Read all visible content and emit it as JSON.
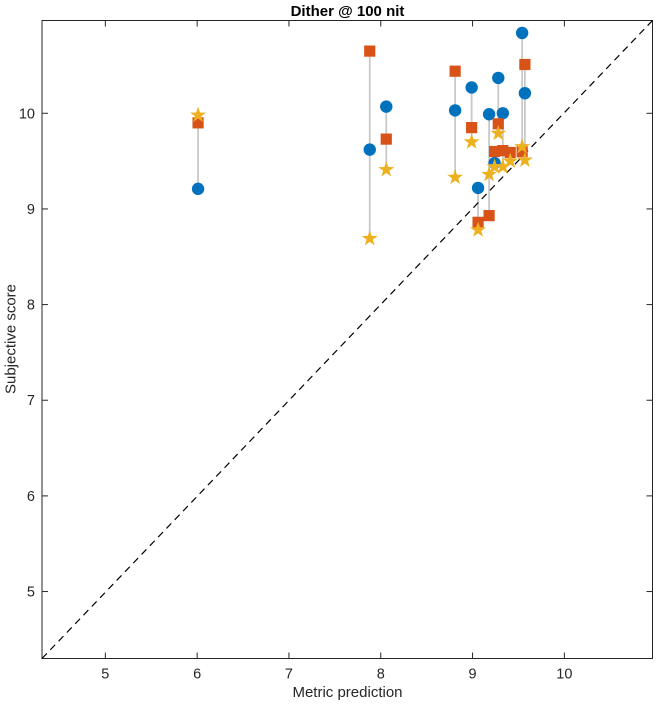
{
  "chart_data": {
    "type": "scatter",
    "title": "Dither @ 100 nit",
    "xlabel": "Metric prediction",
    "ylabel": "Subjective score",
    "xlim": [
      4.31,
      10.96
    ],
    "ylim": [
      4.3,
      10.97
    ],
    "xticks": [
      5,
      6,
      7,
      8,
      9,
      10
    ],
    "yticks": [
      5,
      6,
      7,
      8,
      9,
      10
    ],
    "grid": false,
    "legend": "none",
    "axis_color": "#262626",
    "background": "#ffffff",
    "identity_line": {
      "style": "dashed",
      "color": "#000000",
      "meaning": "y = x reference"
    },
    "connector_color": "#c9c9c9",
    "series_meta": [
      {
        "key": "circle",
        "marker": "circle",
        "color": "#0072BD",
        "name": "circle-series"
      },
      {
        "key": "square",
        "marker": "square",
        "color": "#D95319",
        "name": "square-series"
      },
      {
        "key": "star",
        "marker": "pentagram",
        "color": "#EDB120",
        "name": "star-series"
      }
    ],
    "groups": [
      {
        "x": 6.01,
        "circle": 9.21,
        "square": 9.9,
        "star": 9.98
      },
      {
        "x": 7.88,
        "circle": 9.62,
        "square": 10.65,
        "star": 8.69
      },
      {
        "x": 8.06,
        "circle": 10.07,
        "square": 9.73,
        "star": 9.41
      },
      {
        "x": 8.81,
        "circle": 10.03,
        "square": 10.44,
        "star": 9.33
      },
      {
        "x": 8.99,
        "circle": 10.27,
        "square": 9.85,
        "star": 9.7
      },
      {
        "x": 9.06,
        "circle": 9.22,
        "square": 8.86,
        "star": 8.78
      },
      {
        "x": 9.18,
        "circle": 9.99,
        "square": 8.93,
        "star": 9.36
      },
      {
        "x": 9.24,
        "circle": 9.48,
        "square": 9.6,
        "star": 9.44
      },
      {
        "x": 9.28,
        "circle": 10.37,
        "square": 9.89,
        "star": 9.79
      },
      {
        "x": 9.33,
        "circle": 10.0,
        "square": 9.61,
        "star": 9.44
      },
      {
        "x": 9.41,
        "square": 9.59,
        "star": 9.5
      },
      {
        "x": 9.54,
        "circle": 10.84,
        "square": 9.6,
        "star": 9.65
      },
      {
        "x": 9.57,
        "circle": 10.21,
        "square": 10.51,
        "star": 9.51
      }
    ]
  }
}
